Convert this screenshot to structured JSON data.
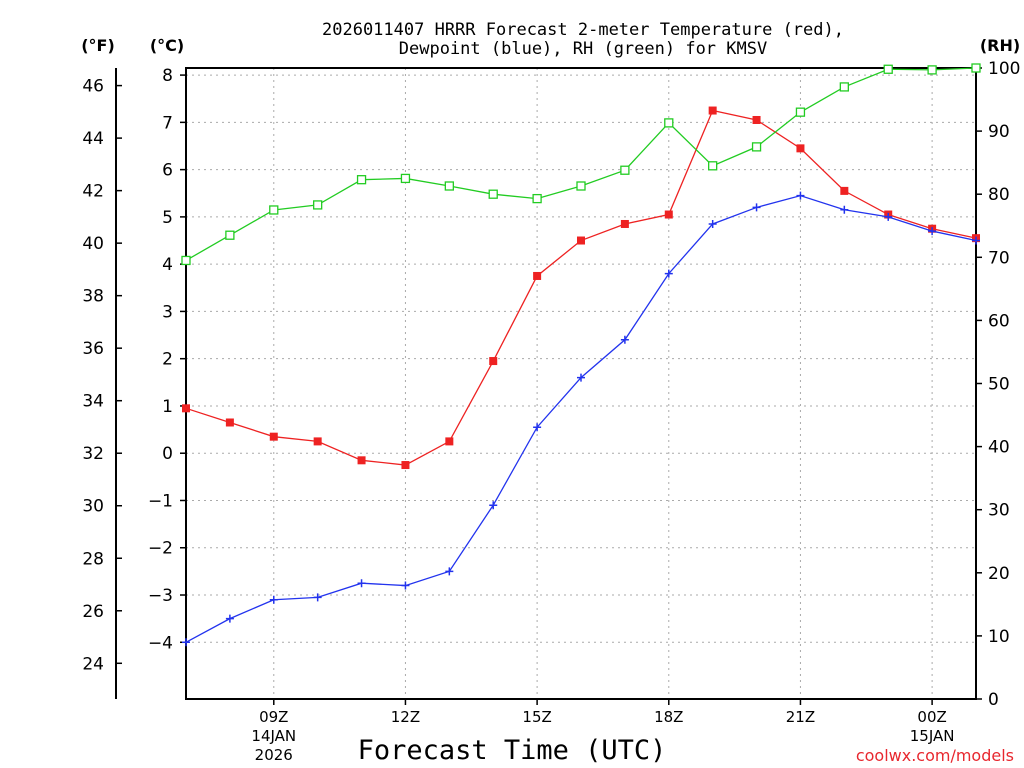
{
  "chart_data": {
    "type": "line",
    "title_line1": "2026011407 HRRR Forecast 2-meter Temperature (red),",
    "title_line2": "Dewpoint (blue), RH (green) for KMSV",
    "xlabel": "Forecast Time (UTC)",
    "credit": "coolwx.com/models",
    "left_unit_f": "(°F)",
    "left_unit_c": "(°C)",
    "right_unit": "(RH)",
    "x": [
      7,
      8,
      9,
      10,
      11,
      12,
      13,
      14,
      15,
      16,
      17,
      18,
      19,
      20,
      21,
      22,
      23,
      24,
      25
    ],
    "xlim": [
      7,
      25
    ],
    "x_ticks": [
      {
        "x": 9,
        "label": "09Z",
        "sub1": "14JAN",
        "sub2": "2026"
      },
      {
        "x": 12,
        "label": "12Z",
        "sub1": "",
        "sub2": ""
      },
      {
        "x": 15,
        "label": "15Z",
        "sub1": "",
        "sub2": ""
      },
      {
        "x": 18,
        "label": "18Z",
        "sub1": "",
        "sub2": ""
      },
      {
        "x": 21,
        "label": "21Z",
        "sub1": "",
        "sub2": ""
      },
      {
        "x": 24,
        "label": "00Z",
        "sub1": "15JAN",
        "sub2": ""
      }
    ],
    "ylim_c": [
      -5.2,
      8.15
    ],
    "y_ticks_c": [
      "-4",
      "-3",
      "-2",
      "-1",
      "0",
      "1",
      "2",
      "3",
      "4",
      "5",
      "6",
      "7",
      "8"
    ],
    "y_ticks_f": [
      "24",
      "26",
      "28",
      "30",
      "32",
      "34",
      "36",
      "38",
      "40",
      "42",
      "44",
      "46"
    ],
    "y_ticks_rh": [
      "0",
      "10",
      "20",
      "30",
      "40",
      "50",
      "60",
      "70",
      "80",
      "90",
      "100"
    ],
    "ylim_rh": [
      0,
      100
    ],
    "series": [
      {
        "name": "2-meter Temperature",
        "axis": "c",
        "color": "#ee2222",
        "marker": "filled-square",
        "values": [
          0.95,
          0.65,
          0.35,
          0.25,
          -0.15,
          -0.25,
          0.25,
          1.95,
          3.75,
          4.5,
          4.85,
          5.05,
          7.25,
          7.05,
          6.45,
          5.55,
          5.05,
          4.75,
          4.55
        ]
      },
      {
        "name": "Dewpoint",
        "axis": "c",
        "color": "#2233ee",
        "marker": "plus",
        "values": [
          -4.0,
          -3.5,
          -3.1,
          -3.05,
          -2.75,
          -2.8,
          -2.5,
          -1.1,
          0.55,
          1.6,
          2.4,
          3.8,
          4.85,
          5.2,
          5.45,
          5.15,
          5.0,
          4.7,
          4.5
        ]
      },
      {
        "name": "RH",
        "axis": "rh",
        "color": "#22cc22",
        "marker": "open-square",
        "values": [
          69.5,
          73.5,
          77.5,
          78.3,
          82.3,
          82.5,
          81.3,
          80.0,
          79.3,
          81.3,
          83.8,
          91.3,
          84.5,
          87.5,
          93.0,
          97.0,
          99.8,
          99.7,
          100.0
        ]
      }
    ]
  }
}
